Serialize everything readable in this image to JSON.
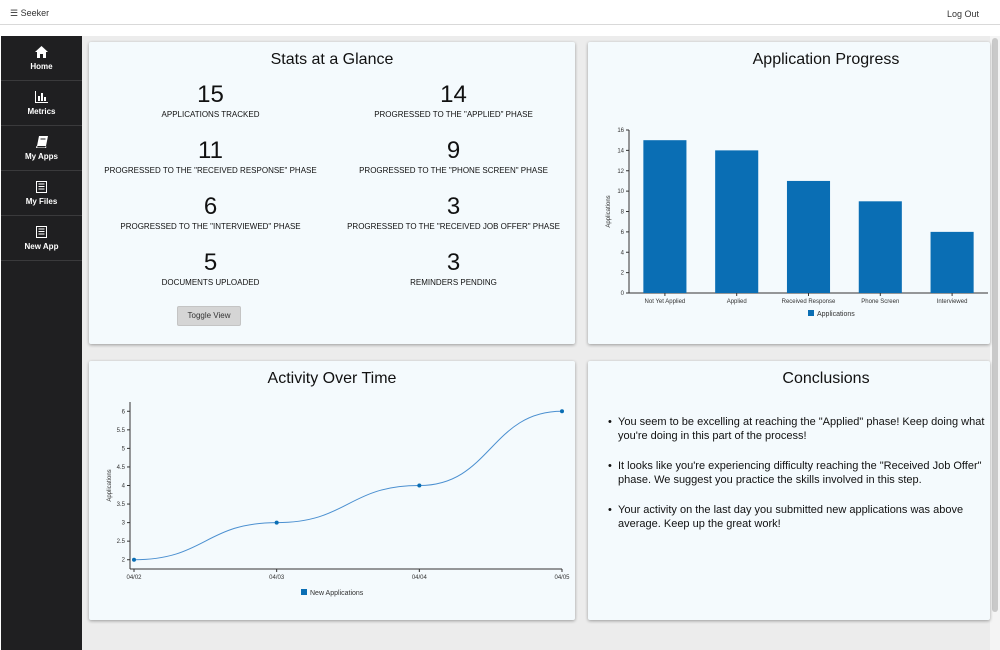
{
  "topbar": {
    "brand": "Seeker",
    "logout": "Log Out"
  },
  "sidebar": {
    "items": [
      {
        "label": "Home",
        "icon": "home-icon"
      },
      {
        "label": "Metrics",
        "icon": "bar-chart-icon"
      },
      {
        "label": "My Apps",
        "icon": "book-icon"
      },
      {
        "label": "My Files",
        "icon": "file-icon"
      },
      {
        "label": "New App",
        "icon": "new-file-icon"
      }
    ]
  },
  "stats": {
    "title": "Stats at a Glance",
    "items": [
      {
        "value": "15",
        "label": "APPLICATIONS TRACKED"
      },
      {
        "value": "14",
        "label": "PROGRESSED TO THE \"APPLIED\" PHASE"
      },
      {
        "value": "11",
        "label": "PROGRESSED TO THE \"RECEIVED RESPONSE\" PHASE"
      },
      {
        "value": "9",
        "label": "PROGRESSED TO THE \"PHONE SCREEN\" PHASE"
      },
      {
        "value": "6",
        "label": "PROGRESSED TO THE \"INTERVIEWED\" PHASE"
      },
      {
        "value": "3",
        "label": "PROGRESSED TO THE \"RECEIVED JOB OFFER\" PHASE"
      },
      {
        "value": "5",
        "label": "DOCUMENTS UPLOADED"
      },
      {
        "value": "3",
        "label": "REMINDERS PENDING"
      }
    ],
    "toggle_label": "Toggle View"
  },
  "progress": {
    "title": "Application Progress",
    "chart_data": {
      "type": "bar",
      "categories": [
        "Not Yet Applied",
        "Applied",
        "Received Response",
        "Phone Screen",
        "Interviewed"
      ],
      "series": [
        {
          "name": "Applications",
          "values": [
            15,
            14,
            11,
            9,
            6
          ]
        }
      ],
      "ylabel": "Applications",
      "ylim": [
        0,
        16
      ],
      "yticks": [
        "0",
        "2",
        "4",
        "6",
        "8",
        "10",
        "12",
        "14",
        "16"
      ],
      "color": "#0a6eb4",
      "legend": "bottom"
    }
  },
  "activity": {
    "title": "Activity Over Time",
    "chart_data": {
      "type": "line",
      "x": [
        "04/02",
        "04/03",
        "04/04",
        "04/05"
      ],
      "series": [
        {
          "name": "New Applications",
          "values": [
            2,
            3,
            4,
            6
          ]
        }
      ],
      "ylabel": "Applications",
      "ylim": [
        1.75,
        6.25
      ],
      "yticks": [
        "2",
        "2.5",
        "3",
        "3.5",
        "4",
        "4.5",
        "5",
        "5.5",
        "6"
      ],
      "color": "#0a6eb4",
      "legend": "bottom"
    }
  },
  "conclusions": {
    "title": "Conclusions",
    "items": [
      "You seem to be excelling at reaching the \"Applied\" phase! Keep doing what you're doing in this part of the process!",
      "It looks like you're experiencing difficulty reaching the \"Received Job Offer\" phase. We suggest you practice the skills involved in this step.",
      "Your activity on the last day you submitted new applications was above average. Keep up the great work!"
    ]
  }
}
